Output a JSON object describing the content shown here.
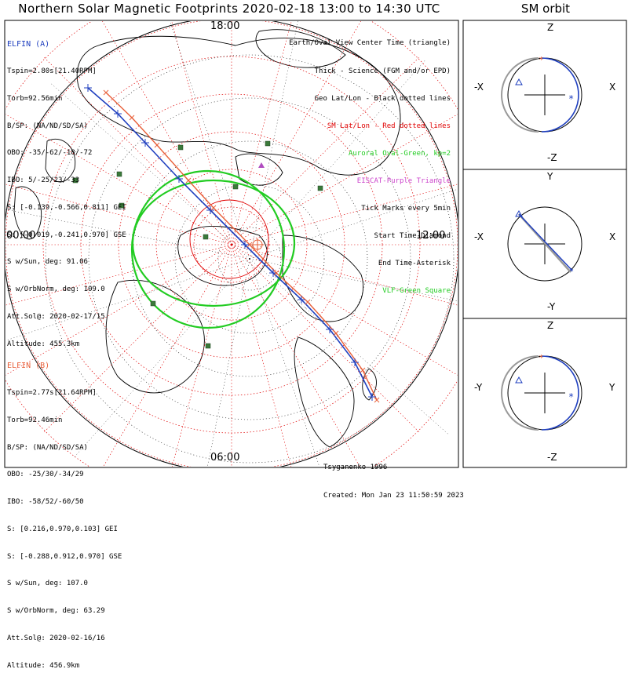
{
  "title": "Northern Solar Magnetic Footprints 2020-02-18 13:00 to 14:30 UTC",
  "sm_title": "SM orbit",
  "mlt_labels": {
    "top": "18:00",
    "left": "00:00",
    "right": "12:00",
    "bottom": "06:00"
  },
  "elfin_a": {
    "name": "ELFIN (A)",
    "color": "#1f3fbf",
    "lines": [
      "Tspin=2.80s[21.40RPM]",
      "Torb=92.56min",
      "B/SP: (NA/ND/SD/SA)",
      "OBO: -35/-62/-18/-72",
      "IBO: 5/-25/23/-33",
      "S: [-0.139,-0.566,0.811] GEI",
      "S: [-0.019,-0.241,0.970] GSE",
      "S w/Sun, deg: 91.06",
      "S w/OrbNorm, deg: 109.0",
      "Att.Sol@: 2020-02-17/15",
      "Altitude: 455.3km"
    ]
  },
  "elfin_b": {
    "name": "ELFIN (B)",
    "color": "#e8603a",
    "lines": [
      "Tspin=2.77s[21.64RPM]",
      "Torb=92.46min",
      "B/SP: (NA/ND/SD/SA)",
      "OBO: -25/30/-34/29",
      "IBO: -58/52/-60/50",
      "S: [0.216,0.970,0.103] GEI",
      "S: [-0.288,0.912,0.970] GSE",
      "S w/Sun, deg: 107.0",
      "S w/OrbNorm, deg: 63.29",
      "Att.Sol@: 2020-02-16/16",
      "Altitude: 456.9km"
    ]
  },
  "legend": [
    {
      "text": "Earth/Oval View Center Time (triangle)",
      "color": "#000000"
    },
    {
      "text": "Thick - Science (FGM and/or EPD)",
      "color": "#000000"
    },
    {
      "text": "Geo Lat/Lon - Black dotted lines",
      "color": "#000000"
    },
    {
      "text": "SM Lat/Lon - Red dotted lines",
      "color": "#e00000"
    },
    {
      "text": "Auroral Oval-Green, kp=2",
      "color": "#22cc22"
    },
    {
      "text": "EISCAT-Purple Triangle",
      "color": "#cc44cc"
    },
    {
      "text": "Tick Marks every 5min",
      "color": "#000000"
    },
    {
      "text": "Start Time-Diamond",
      "color": "#000000"
    },
    {
      "text": "End Time-Asterisk",
      "color": "#000000"
    },
    {
      "text": "VLF-Green Square",
      "color": "#22cc22"
    }
  ],
  "credit": [
    "Tsyganenko-1996",
    "Created: Mon Jan 23 11:50:59 2023"
  ],
  "panels": [
    {
      "top": "Z",
      "bottom": "-Z",
      "left": "-X",
      "right": "X"
    },
    {
      "top": "Y",
      "bottom": "-Y",
      "left": "-X",
      "right": "X"
    },
    {
      "top": "Z",
      "bottom": "-Z",
      "left": "-Y",
      "right": "Y"
    }
  ],
  "colors": {
    "auroral": "#22cc22",
    "sm_grid": "#e00000",
    "vlf": "#3a7a3a",
    "eiscat": "#b04cc0"
  }
}
